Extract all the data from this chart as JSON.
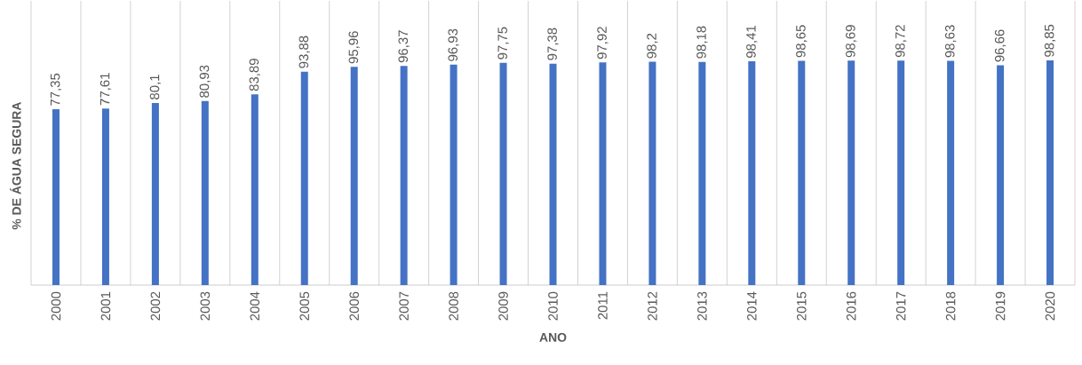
{
  "chart_data": {
    "type": "bar",
    "xlabel": "ANO",
    "ylabel": "% DE ÁGUA SEGURA",
    "categories": [
      "2000",
      "2001",
      "2002",
      "2003",
      "2004",
      "2005",
      "2006",
      "2007",
      "2008",
      "2009",
      "2010",
      "2011",
      "2012",
      "2013",
      "2014",
      "2015",
      "2016",
      "2017",
      "2018",
      "2019",
      "2020"
    ],
    "values": [
      77.35,
      77.61,
      80.1,
      80.93,
      83.89,
      93.88,
      95.96,
      96.37,
      96.93,
      97.75,
      97.38,
      97.92,
      98.2,
      98.18,
      98.41,
      98.65,
      98.69,
      98.72,
      98.63,
      96.66,
      98.85
    ],
    "value_labels": [
      "77,35",
      "77,61",
      "80,1",
      "80,93",
      "83,89",
      "93,88",
      "95,96",
      "96,37",
      "96,93",
      "97,75",
      "97,38",
      "97,92",
      "98,2",
      "98,18",
      "98,41",
      "98,65",
      "98,69",
      "98,72",
      "98,63",
      "96,66",
      "98,85"
    ],
    "color": "#4472c4",
    "ylim": [
      0,
      125
    ],
    "grid": "x",
    "tick_labels": "x"
  }
}
